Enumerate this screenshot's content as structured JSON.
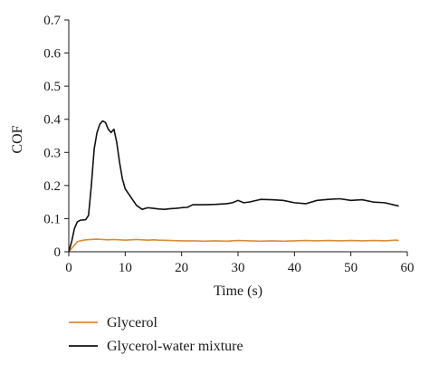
{
  "chart_data": {
    "type": "line",
    "title": "",
    "xlabel": "Time (s)",
    "ylabel": "COF",
    "xlim": [
      0,
      60
    ],
    "ylim": [
      0,
      0.7
    ],
    "xticks": [
      0,
      10,
      20,
      30,
      40,
      50,
      60
    ],
    "xtick_labels": [
      "0",
      "10",
      "20",
      "30",
      "40",
      "50",
      "60"
    ],
    "yticks": [
      0,
      0.1,
      0.2,
      0.3,
      0.4,
      0.5,
      0.6,
      0.7
    ],
    "ytick_labels": [
      "0",
      "0.1",
      "0.2",
      "0.3",
      "0.4",
      "0.5",
      "0.6",
      "0.7"
    ],
    "grid": false,
    "legend_position": "bottom-left",
    "series": [
      {
        "name": "Glycerol",
        "color": "#d98b3a",
        "x": [
          0,
          0.5,
          1,
          1.5,
          2,
          3,
          4,
          5,
          6,
          7,
          8,
          9,
          10,
          11,
          12,
          13,
          14,
          15,
          16,
          18,
          20,
          22,
          24,
          26,
          28,
          30,
          32,
          34,
          36,
          38,
          40,
          42,
          44,
          46,
          48,
          50,
          52,
          54,
          56,
          57,
          58,
          58.5
        ],
        "y": [
          0,
          0.01,
          0.02,
          0.03,
          0.033,
          0.036,
          0.037,
          0.038,
          0.037,
          0.036,
          0.037,
          0.036,
          0.035,
          0.036,
          0.037,
          0.036,
          0.035,
          0.036,
          0.035,
          0.034,
          0.033,
          0.033,
          0.032,
          0.033,
          0.032,
          0.034,
          0.033,
          0.032,
          0.033,
          0.032,
          0.033,
          0.034,
          0.033,
          0.034,
          0.033,
          0.034,
          0.033,
          0.034,
          0.033,
          0.034,
          0.035,
          0.034
        ]
      },
      {
        "name": "Glycerol-water mixture",
        "color": "#111111",
        "x": [
          0,
          0.5,
          1,
          1.5,
          2,
          3,
          3.5,
          4,
          4.5,
          5,
          5.5,
          6,
          6.5,
          7,
          7.5,
          8,
          8.5,
          9,
          9.5,
          10,
          11,
          12,
          13,
          14,
          15,
          16,
          17,
          18,
          19,
          20,
          21,
          22,
          24,
          26,
          28,
          29,
          30,
          31,
          32,
          34,
          36,
          38,
          40,
          42,
          44,
          46,
          48,
          50,
          52,
          54,
          56,
          58,
          58.5
        ],
        "y": [
          0,
          0.03,
          0.07,
          0.09,
          0.095,
          0.097,
          0.11,
          0.2,
          0.31,
          0.36,
          0.385,
          0.395,
          0.39,
          0.37,
          0.36,
          0.37,
          0.33,
          0.27,
          0.22,
          0.19,
          0.165,
          0.14,
          0.128,
          0.133,
          0.131,
          0.129,
          0.128,
          0.13,
          0.131,
          0.133,
          0.134,
          0.142,
          0.142,
          0.143,
          0.145,
          0.148,
          0.155,
          0.148,
          0.15,
          0.158,
          0.157,
          0.155,
          0.148,
          0.145,
          0.155,
          0.158,
          0.16,
          0.155,
          0.157,
          0.15,
          0.148,
          0.14,
          0.138
        ]
      }
    ]
  }
}
